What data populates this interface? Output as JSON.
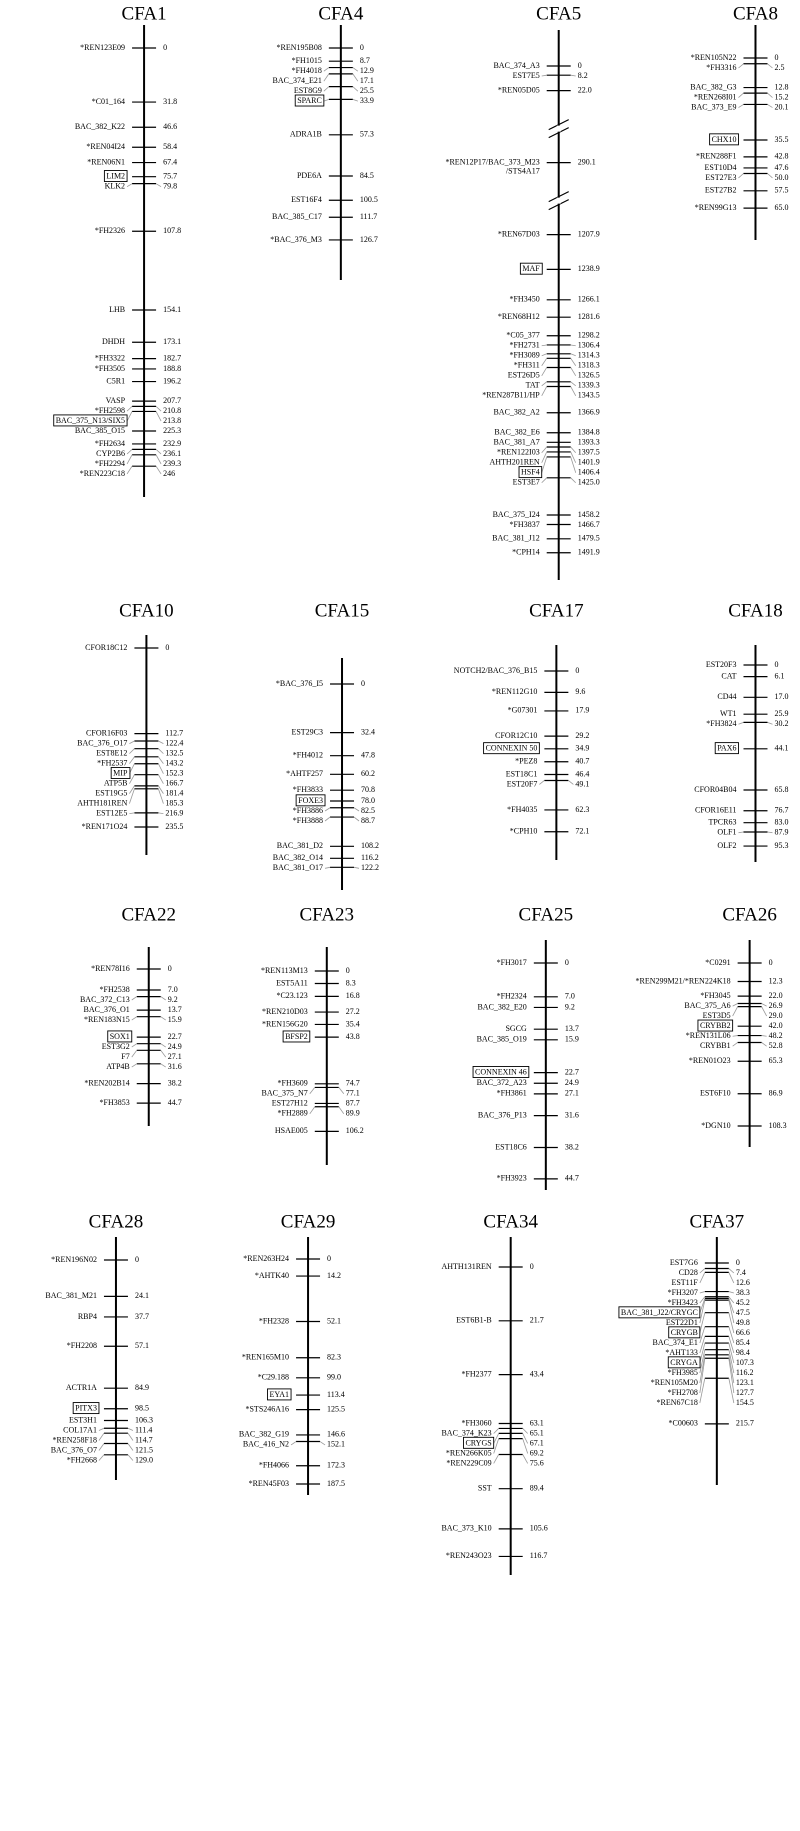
{
  "chromosomes": [
    {
      "name": "CFA1",
      "markers": [
        {
          "label": "*REN123E09",
          "pos": "0"
        },
        {
          "label": "*C01_164",
          "pos": "31.8"
        },
        {
          "label": "BAC_382_K22",
          "pos": "46.6"
        },
        {
          "label": "*REN04I24",
          "pos": "58.4"
        },
        {
          "label": "*REN06N1",
          "pos": "67.4"
        },
        {
          "label": "LIM2",
          "pos": "75.7",
          "boxed": true
        },
        {
          "label": "KLK2",
          "pos": "79.8"
        },
        {
          "label": "*FH2326",
          "pos": "107.8"
        },
        {
          "label": "LHB",
          "pos": "154.1"
        },
        {
          "label": "DHDH",
          "pos": "173.1"
        },
        {
          "label": "*FH3322",
          "pos": "182.7"
        },
        {
          "label": "*FH3505",
          "pos": "188.8"
        },
        {
          "label": "C5R1",
          "pos": "196.2"
        },
        {
          "label": "VASP",
          "pos": "207.7"
        },
        {
          "label": "*FH2598",
          "pos": "210.8"
        },
        {
          "label": "BAC_375_N13/SIX5",
          "pos": "213.8",
          "boxed": true
        },
        {
          "label": "BAC_385_O15",
          "pos": "225.3"
        },
        {
          "label": "*FH2634",
          "pos": "232.9"
        },
        {
          "label": "CYP2B6",
          "pos": "236.1"
        },
        {
          "label": "*FH2294",
          "pos": "239.3"
        },
        {
          "label": "*REN223C18",
          "pos": "246"
        }
      ]
    },
    {
      "name": "CFA4",
      "markers": [
        {
          "label": "*REN195B08",
          "pos": "0"
        },
        {
          "label": "*FH1015",
          "pos": "8.7"
        },
        {
          "label": "*FH4018",
          "pos": "12.9"
        },
        {
          "label": "BAC_374_E21",
          "pos": "17.1"
        },
        {
          "label": "EST8G9",
          "pos": "25.5"
        },
        {
          "label": "SPARC",
          "pos": "33.9",
          "boxed": true
        },
        {
          "label": "ADRA1B",
          "pos": "57.3"
        },
        {
          "label": "PDE6A",
          "pos": "84.5"
        },
        {
          "label": "EST16F4",
          "pos": "100.5"
        },
        {
          "label": "BAC_385_C17",
          "pos": "111.7"
        },
        {
          "label": "*BAC_376_M3",
          "pos": "126.7"
        }
      ]
    },
    {
      "name": "CFA5",
      "markers": [
        {
          "label": "BAC_374_A3",
          "pos": "0"
        },
        {
          "label": "EST7E5",
          "pos": "8.2"
        },
        {
          "label": "*REN05D05",
          "pos": "22.0"
        },
        {
          "label": "*REN12P17/BAC_373_M23",
          "label_cont": "/STS4A17",
          "pos": "290.1"
        },
        {
          "label": "*REN67D03",
          "pos": "1207.9"
        },
        {
          "label": "MAF",
          "pos": "1238.9",
          "boxed": true
        },
        {
          "label": "*FH3450",
          "pos": "1266.1"
        },
        {
          "label": "*REN68H12",
          "pos": "1281.6"
        },
        {
          "label": "*C05_377",
          "pos": "1298.2"
        },
        {
          "label": "*FH2731",
          "pos": "1306.4"
        },
        {
          "label": "*FH3089",
          "pos": "1314.3"
        },
        {
          "label": "*FH311",
          "pos": "1318.3"
        },
        {
          "label": "EST26D5",
          "pos": "1326.5"
        },
        {
          "label": "TAT",
          "pos": "1339.3"
        },
        {
          "label": "*REN287B11/HP",
          "pos": "1343.5"
        },
        {
          "label": "BAC_382_A2",
          "pos": "1366.9"
        },
        {
          "label": "BAC_382_E6",
          "pos": "1384.8"
        },
        {
          "label": "BAC_381_A7",
          "pos": "1393.3"
        },
        {
          "label": "*REN122I03",
          "pos": "1397.5"
        },
        {
          "label": "AHTH201REN",
          "pos": "1401.9"
        },
        {
          "label": "HSF4",
          "pos": "1406.4",
          "boxed": true
        },
        {
          "label": "EST3E7",
          "pos": "1425.0"
        },
        {
          "label": "BAC_375_I24",
          "pos": "1458.2"
        },
        {
          "label": "*FH3837",
          "pos": "1466.7"
        },
        {
          "label": "BAC_381_J12",
          "pos": "1479.5"
        },
        {
          "label": "*CPH14",
          "pos": "1491.9"
        }
      ]
    },
    {
      "name": "CFA8",
      "markers": [
        {
          "label": "*REN105N22",
          "pos": "0"
        },
        {
          "label": "*FH3316",
          "pos": "2.5"
        },
        {
          "label": "BAC_382_G3",
          "pos": "12.8"
        },
        {
          "label": "*REN268I01",
          "pos": "15.2"
        },
        {
          "label": "BAC_373_E9",
          "pos": "20.1"
        },
        {
          "label": "CHX10",
          "pos": "35.5",
          "boxed": true
        },
        {
          "label": "*REN288F1",
          "pos": "42.8"
        },
        {
          "label": "EST10D4",
          "pos": "47.6"
        },
        {
          "label": "EST27E3",
          "pos": "50.0"
        },
        {
          "label": "EST27B2",
          "pos": "57.5"
        },
        {
          "label": "*REN99G13",
          "pos": "65.0"
        }
      ]
    },
    {
      "name": "CFA10",
      "markers": [
        {
          "label": "CFOR18C12",
          "pos": "0"
        },
        {
          "label": "CFOR16F03",
          "pos": "112.7"
        },
        {
          "label": "BAC_376_O17",
          "pos": "122.4"
        },
        {
          "label": "EST8E12",
          "pos": "132.5"
        },
        {
          "label": "*FH2537",
          "pos": "143.2"
        },
        {
          "label": "MIP",
          "pos": "152.3",
          "boxed": true
        },
        {
          "label": "ATP5B",
          "pos": "166.7"
        },
        {
          "label": "EST19G5",
          "pos": "181.4"
        },
        {
          "label": "AHTH181REN",
          "pos": "185.3"
        },
        {
          "label": "EST12E5",
          "pos": "216.9"
        },
        {
          "label": "*REN171O24",
          "pos": "235.5"
        }
      ]
    },
    {
      "name": "CFA15",
      "markers": [
        {
          "label": "*BAC_376_I5",
          "pos": "0"
        },
        {
          "label": "EST29C3",
          "pos": "32.4"
        },
        {
          "label": "*FH4012",
          "pos": "47.8"
        },
        {
          "label": "*AHTF257",
          "pos": "60.2"
        },
        {
          "label": "*FH3833",
          "pos": "70.8"
        },
        {
          "label": "FOXE3",
          "pos": "78.0",
          "boxed": true
        },
        {
          "label": "*FH3886",
          "pos": "82.5"
        },
        {
          "label": "*FH3888",
          "pos": "88.7"
        },
        {
          "label": "BAC_381_D2",
          "pos": "108.2"
        },
        {
          "label": "BAC_382_O14",
          "pos": "116.2"
        },
        {
          "label": "BAC_381_O17",
          "pos": "122.2"
        }
      ]
    },
    {
      "name": "CFA17",
      "markers": [
        {
          "label": "NOTCH2/BAC_376_B15",
          "pos": "0"
        },
        {
          "label": "*REN112G10",
          "pos": "9.6"
        },
        {
          "label": "*G07301",
          "pos": "17.9"
        },
        {
          "label": "CFOR12C10",
          "pos": "29.2"
        },
        {
          "label": "CONNEXIN 50",
          "pos": "34.9",
          "boxed": true
        },
        {
          "label": "*PEZ8",
          "pos": "40.7"
        },
        {
          "label": "EST18C1",
          "pos": "46.4"
        },
        {
          "label": "EST20F7",
          "pos": "49.1"
        },
        {
          "label": "*FH4035",
          "pos": "62.3"
        },
        {
          "label": "*CPH10",
          "pos": "72.1"
        }
      ]
    },
    {
      "name": "CFA18",
      "markers": [
        {
          "label": "EST20F3",
          "pos": "0"
        },
        {
          "label": "CAT",
          "pos": "6.1"
        },
        {
          "label": "CD44",
          "pos": "17.0"
        },
        {
          "label": "WT1",
          "pos": "25.9"
        },
        {
          "label": "*FH3824",
          "pos": "30.2"
        },
        {
          "label": "PAX6",
          "pos": "44.1",
          "boxed": true
        },
        {
          "label": "CFOR04B04",
          "pos": "65.8"
        },
        {
          "label": "CFOR16E11",
          "pos": "76.7"
        },
        {
          "label": "TPCR63",
          "pos": "83.0"
        },
        {
          "label": "OLF1",
          "pos": "87.9"
        },
        {
          "label": "OLF2",
          "pos": "95.3"
        }
      ]
    },
    {
      "name": "CFA22",
      "markers": [
        {
          "label": "*REN78I16",
          "pos": "0"
        },
        {
          "label": "*FH2538",
          "pos": "7.0"
        },
        {
          "label": "BAC_372_C13",
          "pos": "9.2"
        },
        {
          "label": "BAC_376_O1",
          "pos": "13.7"
        },
        {
          "label": "*REN183N15",
          "pos": "15.9"
        },
        {
          "label": "SOX1",
          "pos": "22.7",
          "boxed": true
        },
        {
          "label": "EST3G2",
          "pos": "24.9"
        },
        {
          "label": "F7",
          "pos": "27.1"
        },
        {
          "label": "ATP4B",
          "pos": "31.6"
        },
        {
          "label": "*REN202B14",
          "pos": "38.2"
        },
        {
          "label": "*FH3853",
          "pos": "44.7"
        }
      ]
    },
    {
      "name": "CFA23",
      "markers": [
        {
          "label": "*REN113M13",
          "pos": "0"
        },
        {
          "label": "EST5A11",
          "pos": "8.3"
        },
        {
          "label": "*C23.123",
          "pos": "16.8"
        },
        {
          "label": "*REN210D03",
          "pos": "27.2"
        },
        {
          "label": "*REN156G20",
          "pos": "35.4"
        },
        {
          "label": "BFSP2",
          "pos": "43.8",
          "boxed": true
        },
        {
          "label": "*FH3609",
          "pos": "74.7"
        },
        {
          "label": "BAC_375_N7",
          "pos": "77.1"
        },
        {
          "label": "EST27H12",
          "pos": "87.7"
        },
        {
          "label": "*FH2889",
          "pos": "89.9"
        },
        {
          "label": "HSAE005",
          "pos": "106.2"
        }
      ]
    },
    {
      "name": "CFA25",
      "markers": [
        {
          "label": "*FH3017",
          "pos": "0"
        },
        {
          "label": "*FH2324",
          "pos": "7.0"
        },
        {
          "label": "BAC_382_E20",
          "pos": "9.2"
        },
        {
          "label": "SGCG",
          "pos": "13.7"
        },
        {
          "label": "BAC_385_O19",
          "pos": "15.9"
        },
        {
          "label": "CONNEXIN 46",
          "pos": "22.7",
          "boxed": true
        },
        {
          "label": "BAC_372_A23",
          "pos": "24.9"
        },
        {
          "label": "*FH3861",
          "pos": "27.1"
        },
        {
          "label": "BAC_376_P13",
          "pos": "31.6"
        },
        {
          "label": "EST18C6",
          "pos": "38.2"
        },
        {
          "label": "*FH3923",
          "pos": "44.7"
        }
      ]
    },
    {
      "name": "CFA26",
      "markers": [
        {
          "label": "*C0291",
          "pos": "0"
        },
        {
          "label": "*REN299M21/*REN224K18",
          "pos": "12.3"
        },
        {
          "label": "*FH3045",
          "pos": "22.0"
        },
        {
          "label": "BAC_375_A6",
          "pos": "26.9"
        },
        {
          "label": "EST3D5",
          "pos": "29.0"
        },
        {
          "label": "CRYBB2",
          "pos": "42.0",
          "boxed": true
        },
        {
          "label": "*REN131L06",
          "pos": "48.2"
        },
        {
          "label": "CRYBB1",
          "pos": "52.8"
        },
        {
          "label": "*REN01O23",
          "pos": "65.3"
        },
        {
          "label": "EST6F10",
          "pos": "86.9"
        },
        {
          "label": "*DGN10",
          "pos": "108.3"
        }
      ]
    },
    {
      "name": "CFA28",
      "markers": [
        {
          "label": "*REN196N02",
          "pos": "0"
        },
        {
          "label": "BAC_381_M21",
          "pos": "24.1"
        },
        {
          "label": "RBP4",
          "pos": "37.7"
        },
        {
          "label": "*FH2208",
          "pos": "57.1"
        },
        {
          "label": "ACTR1A",
          "pos": "84.9"
        },
        {
          "label": "PITX3",
          "pos": "98.5",
          "boxed": true
        },
        {
          "label": "EST3H1",
          "pos": "106.3"
        },
        {
          "label": "COL17A1",
          "pos": "111.4"
        },
        {
          "label": "*REN258F18",
          "pos": "114.7"
        },
        {
          "label": "BAC_376_O7",
          "pos": "121.5"
        },
        {
          "label": "*FH2668",
          "pos": "129.0"
        }
      ]
    },
    {
      "name": "CFA29",
      "markers": [
        {
          "label": "*REN263H24",
          "pos": "0"
        },
        {
          "label": "*AHTK40",
          "pos": "14.2"
        },
        {
          "label": "*FH2328",
          "pos": "52.1"
        },
        {
          "label": "*REN165M10",
          "pos": "82.3"
        },
        {
          "label": "*C29.188",
          "pos": "99.0"
        },
        {
          "label": "EYA1",
          "pos": "113.4",
          "boxed": true
        },
        {
          "label": "*STS246A16",
          "pos": "125.5"
        },
        {
          "label": "BAC_382_G19",
          "pos": "146.6"
        },
        {
          "label": "BAC_416_N2",
          "pos": "152.1"
        },
        {
          "label": "*FH4066",
          "pos": "172.3"
        },
        {
          "label": "*REN45F03",
          "pos": "187.5"
        }
      ]
    },
    {
      "name": "CFA34",
      "markers": [
        {
          "label": "AHTH131REN",
          "pos": "0"
        },
        {
          "label": "EST6B1-B",
          "pos": "21.7"
        },
        {
          "label": "*FH2377",
          "pos": "43.4"
        },
        {
          "label": "*FH3060",
          "pos": "63.1"
        },
        {
          "label": "BAC_374_K23",
          "pos": "65.1"
        },
        {
          "label": "CRYGS",
          "pos": "67.1",
          "boxed": true
        },
        {
          "label": "*REN266K05",
          "pos": "69.2"
        },
        {
          "label": "*REN229C09",
          "pos": "75.6"
        },
        {
          "label": "SST",
          "pos": "89.4"
        },
        {
          "label": "BAC_373_K10",
          "pos": "105.6"
        },
        {
          "label": "*REN243O23",
          "pos": "116.7"
        }
      ]
    },
    {
      "name": "CFA37",
      "markers": [
        {
          "label": "EST7G6",
          "pos": "0"
        },
        {
          "label": "CD28",
          "pos": "7.4"
        },
        {
          "label": "EST11F",
          "pos": "12.6"
        },
        {
          "label": "*FH3207",
          "pos": "38.3"
        },
        {
          "label": "*FH3423",
          "pos": "45.2"
        },
        {
          "label": "BAC_381_J22/CRYGC",
          "pos": "47.5",
          "boxed": true
        },
        {
          "label": "EST22D1",
          "pos": "49.8"
        },
        {
          "label": "CRYGB",
          "pos": "66.6",
          "boxed": true
        },
        {
          "label": "BAC_374_E1",
          "pos": "85.4"
        },
        {
          "label": "*AHT133",
          "pos": "98.4"
        },
        {
          "label": "CRYGA",
          "pos": "107.3",
          "boxed": true
        },
        {
          "label": "*FH3985",
          "pos": "116.2"
        },
        {
          "label": "*REN105M20",
          "pos": "123.1"
        },
        {
          "label": "*FH2708",
          "pos": "127.7"
        },
        {
          "label": "*REN67C18",
          "pos": "154.5"
        },
        {
          "label": "*C00603",
          "pos": "215.7"
        }
      ]
    }
  ]
}
